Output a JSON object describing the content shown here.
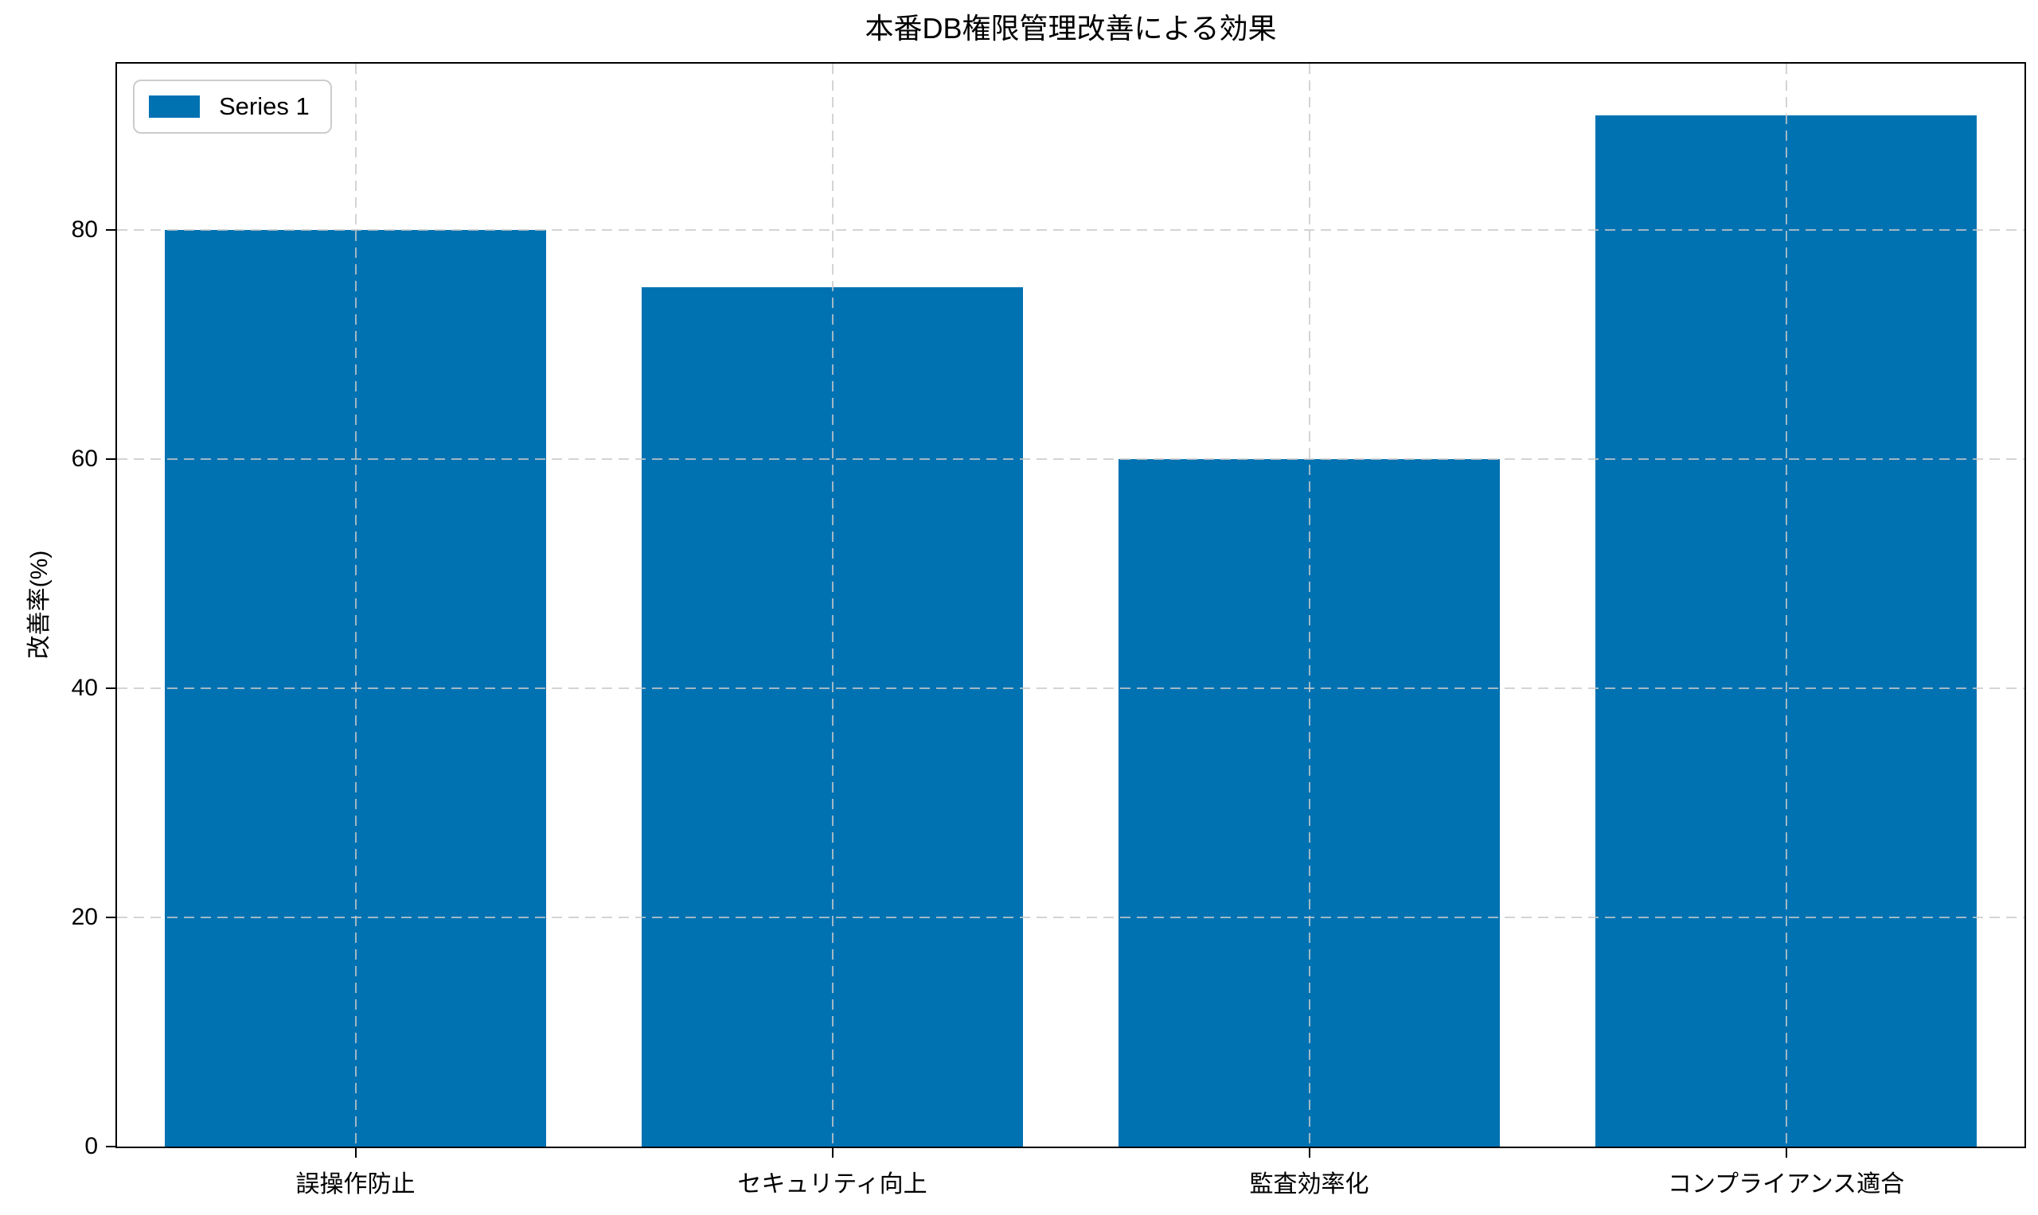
{
  "chart_data": {
    "type": "bar",
    "title": "本番DB権限管理改善による効果",
    "xlabel": "",
    "ylabel": "改善率(%)",
    "categories": [
      "誤操作防止",
      "セキュリティ向上",
      "監査効率化",
      "コンプライアンス適合"
    ],
    "series": [
      {
        "name": "Series 1",
        "values": [
          80,
          75,
          60,
          90
        ]
      }
    ],
    "ylim": [
      0,
      94.5
    ],
    "yticks": [
      0,
      20,
      40,
      60,
      80
    ],
    "grid": {
      "visible": true,
      "style": "dashed",
      "axes": "both",
      "color": "#c9c9c9"
    },
    "legend": {
      "position": "upper-left",
      "entries": [
        "Series 1"
      ]
    },
    "colors": {
      "bar": "#0072b2",
      "spine": "#000000",
      "text": "#000000",
      "legend_border": "#cccccc",
      "background": "#ffffff"
    },
    "bar_width_fraction": 0.8
  }
}
